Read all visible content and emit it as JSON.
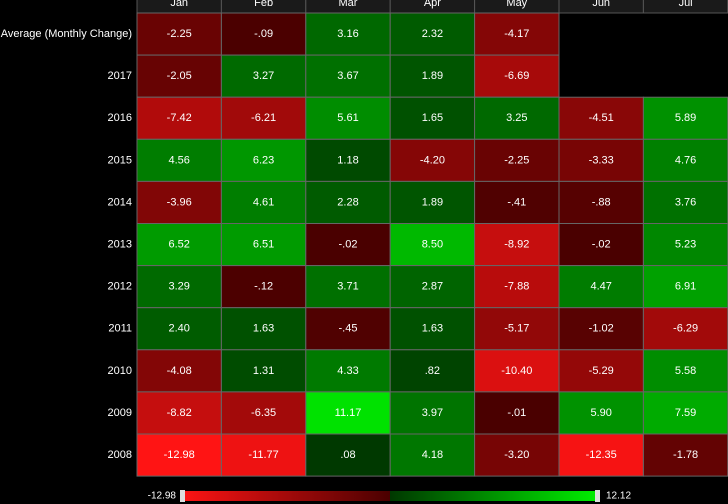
{
  "chart_data": {
    "type": "heatmap",
    "categories": [
      "Jan",
      "Feb",
      "Mar",
      "Apr",
      "May",
      "Jun",
      "Jul"
    ],
    "series": [
      {
        "name": "Average (Monthly Change)",
        "values": [
          -2.25,
          -0.09,
          3.16,
          2.32,
          -4.17,
          null,
          null
        ],
        "value_labels": [
          "-2.25",
          "-.09",
          "3.16",
          "2.32",
          "-4.17",
          null,
          null
        ]
      },
      {
        "name": "2017",
        "values": [
          -2.05,
          3.27,
          3.67,
          1.89,
          -6.69,
          null,
          null
        ],
        "value_labels": [
          "-2.05",
          "3.27",
          "3.67",
          "1.89",
          "-6.69",
          null,
          null
        ]
      },
      {
        "name": "2016",
        "values": [
          -7.42,
          -6.21,
          5.61,
          1.65,
          3.25,
          -4.51,
          5.89
        ],
        "value_labels": [
          "-7.42",
          "-6.21",
          "5.61",
          "1.65",
          "3.25",
          "-4.51",
          "5.89"
        ]
      },
      {
        "name": "2015",
        "values": [
          4.56,
          6.23,
          1.18,
          -4.2,
          -2.25,
          -3.33,
          4.76
        ],
        "value_labels": [
          "4.56",
          "6.23",
          "1.18",
          "-4.20",
          "-2.25",
          "-3.33",
          "4.76"
        ]
      },
      {
        "name": "2014",
        "values": [
          -3.96,
          4.61,
          2.28,
          1.89,
          -0.41,
          -0.88,
          3.76
        ],
        "value_labels": [
          "-3.96",
          "4.61",
          "2.28",
          "1.89",
          "-.41",
          "-.88",
          "3.76"
        ]
      },
      {
        "name": "2013",
        "values": [
          6.52,
          6.51,
          -0.02,
          8.5,
          -8.92,
          -0.02,
          5.23
        ],
        "value_labels": [
          "6.52",
          "6.51",
          "-.02",
          "8.50",
          "-8.92",
          "-.02",
          "5.23"
        ]
      },
      {
        "name": "2012",
        "values": [
          3.29,
          -0.12,
          3.71,
          2.87,
          -7.88,
          4.47,
          6.91
        ],
        "value_labels": [
          "3.29",
          "-.12",
          "3.71",
          "2.87",
          "-7.88",
          "4.47",
          "6.91"
        ]
      },
      {
        "name": "2011",
        "values": [
          2.4,
          1.63,
          -0.45,
          1.63,
          -5.17,
          -1.02,
          -6.29
        ],
        "value_labels": [
          "2.40",
          "1.63",
          "-.45",
          "1.63",
          "-5.17",
          "-1.02",
          "-6.29"
        ]
      },
      {
        "name": "2010",
        "values": [
          -4.08,
          1.31,
          4.33,
          0.82,
          -10.4,
          -5.29,
          5.58
        ],
        "value_labels": [
          "-4.08",
          "1.31",
          "4.33",
          ".82",
          "-10.40",
          "-5.29",
          "5.58"
        ]
      },
      {
        "name": "2009",
        "values": [
          -8.82,
          -6.35,
          11.17,
          3.97,
          -0.01,
          5.9,
          7.59
        ],
        "value_labels": [
          "-8.82",
          "-6.35",
          "11.17",
          "3.97",
          "-.01",
          "5.90",
          "7.59"
        ]
      },
      {
        "name": "2008",
        "values": [
          -12.98,
          -11.77,
          0.08,
          4.18,
          -3.2,
          -12.35,
          -1.78
        ],
        "value_labels": [
          "-12.98",
          "-11.77",
          ".08",
          "4.18",
          "-3.20",
          "-12.35",
          "-1.78"
        ]
      }
    ],
    "zlim": [
      -12.98,
      12.12
    ],
    "colorscale": [
      "#ff1414",
      "#4a0000",
      "#003800",
      "#00f000"
    ]
  }
}
